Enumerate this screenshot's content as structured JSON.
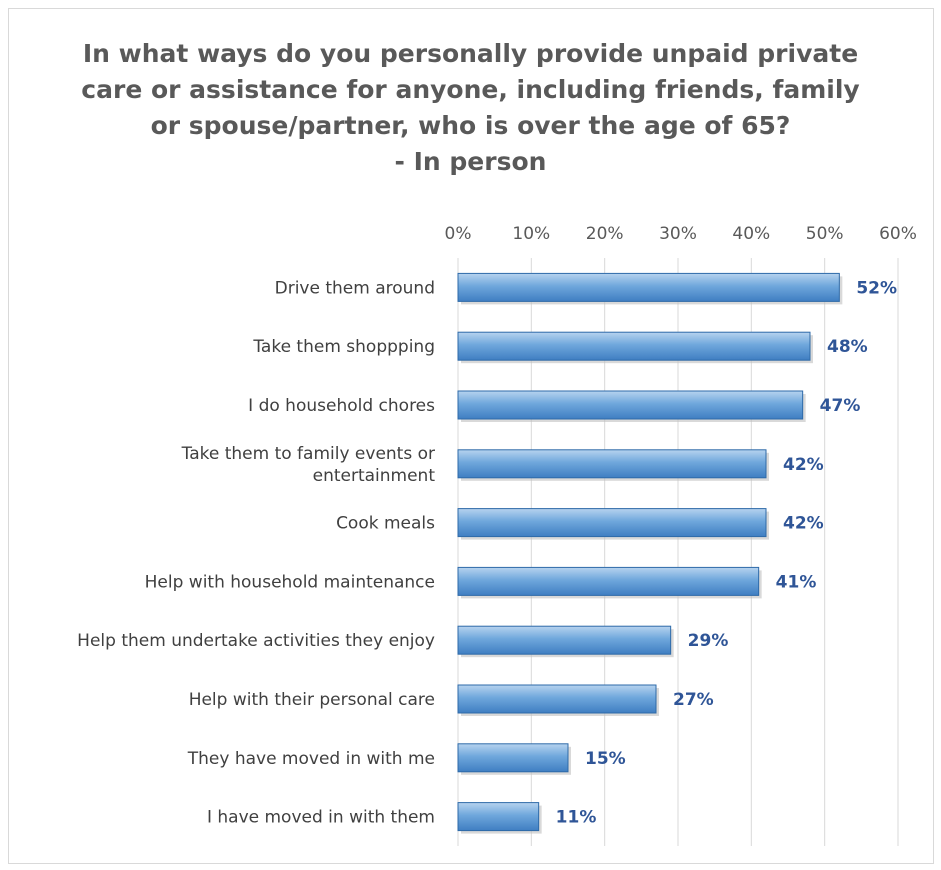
{
  "chart_data": {
    "type": "bar",
    "orientation": "horizontal",
    "title_lines": [
      "In what ways do you personally provide unpaid private",
      "care or assistance for anyone, including friends, family",
      "or spouse/partner, who is over the age of 65?",
      "- In person"
    ],
    "categories": [
      [
        "Drive them around"
      ],
      [
        "Take them shoppping"
      ],
      [
        "I do household chores"
      ],
      [
        "Take them to family events or",
        "entertainment"
      ],
      [
        "Cook meals"
      ],
      [
        "Help with household maintenance"
      ],
      [
        "Help them undertake activities they enjoy"
      ],
      [
        "Help with their personal care"
      ],
      [
        "They have moved in with me"
      ],
      [
        "I have moved in with them"
      ]
    ],
    "values": [
      52,
      48,
      47,
      42,
      42,
      41,
      29,
      27,
      15,
      11
    ],
    "data_labels": [
      "52%",
      "48%",
      "47%",
      "42%",
      "42%",
      "41%",
      "29%",
      "27%",
      "15%",
      "11%"
    ],
    "x_ticks": [
      "0%",
      "10%",
      "20%",
      "30%",
      "40%",
      "50%",
      "60%"
    ],
    "xlim": [
      0,
      60
    ],
    "x_axis_position": "top",
    "grid": true,
    "legend": "none",
    "bar_color": "#5b9bd5"
  }
}
